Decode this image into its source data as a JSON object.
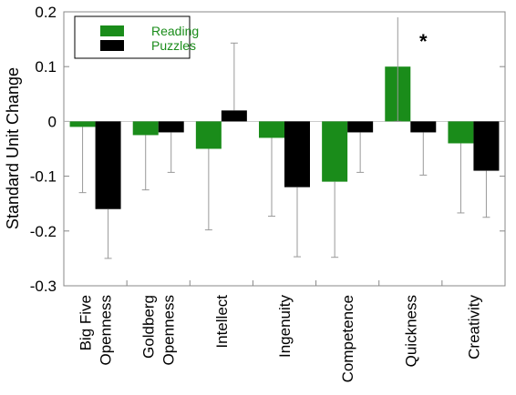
{
  "chart_data": {
    "type": "bar",
    "ylabel": "Standard Unit Change",
    "ylim": [
      -0.3,
      0.2
    ],
    "yticks": [
      0.2,
      0.1,
      0,
      -0.1,
      -0.2,
      -0.3
    ],
    "ytick_labels": [
      "0.2",
      "0.1",
      "0",
      "-0.1",
      "-0.2",
      "-0.3"
    ],
    "categories": [
      [
        "Big Five",
        "Openness"
      ],
      [
        "Goldberg",
        "Openness"
      ],
      [
        "Intellect"
      ],
      [
        "Ingenuity"
      ],
      [
        "Competence"
      ],
      [
        "Quickness"
      ],
      [
        "Creativity"
      ]
    ],
    "series": [
      {
        "name": "Reading",
        "color": "#1a8c1a",
        "values": [
          -0.01,
          -0.025,
          -0.05,
          -0.03,
          -0.11,
          0.1,
          -0.04
        ],
        "err_low": [
          -0.13,
          -0.125,
          -0.198,
          -0.173,
          -0.248,
          0.0,
          -0.167
        ],
        "err_high": [
          -0.01,
          -0.025,
          -0.05,
          -0.03,
          -0.11,
          0.19,
          -0.04
        ]
      },
      {
        "name": "Puzzles",
        "color": "#000000",
        "values": [
          -0.16,
          -0.02,
          0.02,
          -0.12,
          -0.02,
          -0.02,
          -0.09
        ],
        "err_low": [
          -0.25,
          -0.093,
          0.02,
          -0.247,
          -0.093,
          -0.098,
          -0.175
        ],
        "err_high": [
          -0.16,
          -0.02,
          0.143,
          -0.12,
          -0.02,
          -0.02,
          -0.09
        ]
      }
    ],
    "annotations": [
      {
        "text": "*",
        "category_index": 5,
        "y": 0.13
      }
    ],
    "legend_position": "top-left",
    "grid": false
  }
}
